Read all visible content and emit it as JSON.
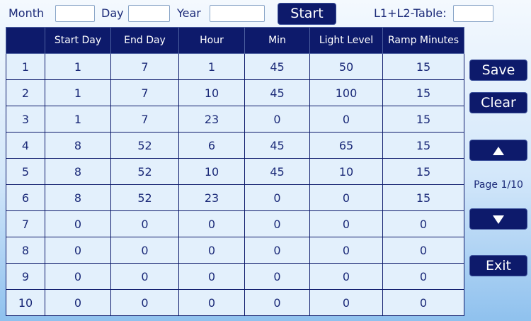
{
  "top_bar": {
    "month_label": "Month",
    "day_label": "Day",
    "year_label": "Year",
    "start_button": "Start",
    "table_label": "L1+L2-Table:"
  },
  "table": {
    "headers": [
      "Start Day",
      "End Day",
      "Hour",
      "Min",
      "Light Level",
      "Ramp Minutes"
    ],
    "rows": [
      [
        1,
        1,
        7,
        1,
        45,
        50,
        15
      ],
      [
        2,
        1,
        7,
        10,
        45,
        100,
        15
      ],
      [
        3,
        1,
        7,
        23,
        0,
        0,
        15
      ],
      [
        4,
        8,
        52,
        6,
        45,
        65,
        15
      ],
      [
        5,
        8,
        52,
        10,
        45,
        10,
        15
      ],
      [
        6,
        8,
        52,
        23,
        0,
        0,
        15
      ],
      [
        7,
        0,
        0,
        0,
        0,
        0,
        0
      ],
      [
        8,
        0,
        0,
        0,
        0,
        0,
        0
      ],
      [
        9,
        0,
        0,
        0,
        0,
        0,
        0
      ],
      [
        10,
        0,
        0,
        0,
        0,
        0,
        0
      ]
    ]
  },
  "side_panel": {
    "save": "Save",
    "clear": "Clear",
    "page": "Page 1/10",
    "exit": "Exit"
  }
}
